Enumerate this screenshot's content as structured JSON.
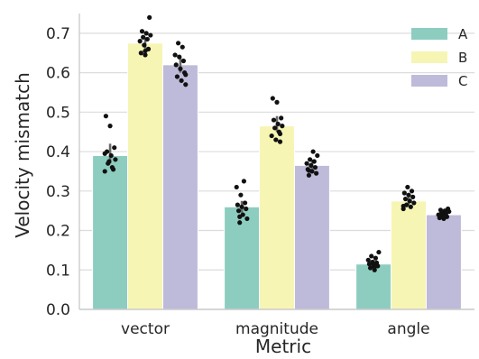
{
  "chart_data": {
    "type": "bar",
    "title": "",
    "xlabel": "Metric",
    "ylabel": "Velocity mismatch",
    "categories": [
      "vector",
      "magnitude",
      "angle"
    ],
    "ylim": [
      0.0,
      0.75
    ],
    "yticks": [
      "0.0",
      "0.1",
      "0.2",
      "0.3",
      "0.4",
      "0.5",
      "0.6",
      "0.7"
    ],
    "grid": true,
    "legend_position": "top-right",
    "series": [
      {
        "name": "A",
        "color": "#8dcdc0",
        "values": [
          0.39,
          0.26,
          0.115
        ],
        "ci": [
          [
            0.37,
            0.42
          ],
          [
            0.245,
            0.275
          ],
          [
            0.11,
            0.125
          ]
        ],
        "points": [
          [
            0.35,
            0.36,
            0.37,
            0.38,
            0.39,
            0.4,
            0.41,
            0.465,
            0.49,
            0.355,
            0.375,
            0.395
          ],
          [
            0.22,
            0.23,
            0.24,
            0.25,
            0.255,
            0.26,
            0.265,
            0.27,
            0.29,
            0.31,
            0.325,
            0.235
          ],
          [
            0.1,
            0.105,
            0.11,
            0.112,
            0.115,
            0.118,
            0.12,
            0.125,
            0.13,
            0.135,
            0.145,
            0.108
          ]
        ]
      },
      {
        "name": "B",
        "color": "#f6f5b4",
        "values": [
          0.675,
          0.465,
          0.275
        ],
        "ci": [
          [
            0.66,
            0.69
          ],
          [
            0.45,
            0.49
          ],
          [
            0.265,
            0.285
          ]
        ],
        "points": [
          [
            0.645,
            0.65,
            0.66,
            0.67,
            0.68,
            0.685,
            0.69,
            0.695,
            0.7,
            0.705,
            0.74,
            0.655
          ],
          [
            0.425,
            0.43,
            0.44,
            0.45,
            0.46,
            0.465,
            0.47,
            0.48,
            0.485,
            0.525,
            0.535,
            0.445
          ],
          [
            0.255,
            0.26,
            0.265,
            0.27,
            0.275,
            0.28,
            0.285,
            0.29,
            0.295,
            0.3,
            0.31,
            0.262
          ]
        ]
      },
      {
        "name": "C",
        "color": "#bebad9",
        "values": [
          0.62,
          0.365,
          0.24
        ],
        "ci": [
          [
            0.6,
            0.64
          ],
          [
            0.355,
            0.38
          ],
          [
            0.235,
            0.245
          ]
        ],
        "points": [
          [
            0.57,
            0.58,
            0.59,
            0.6,
            0.61,
            0.62,
            0.63,
            0.64,
            0.645,
            0.665,
            0.675,
            0.595
          ],
          [
            0.34,
            0.345,
            0.35,
            0.355,
            0.36,
            0.365,
            0.37,
            0.375,
            0.38,
            0.39,
            0.4,
            0.352
          ],
          [
            0.23,
            0.232,
            0.235,
            0.238,
            0.24,
            0.242,
            0.245,
            0.248,
            0.25,
            0.252,
            0.255,
            0.236
          ]
        ]
      }
    ]
  }
}
